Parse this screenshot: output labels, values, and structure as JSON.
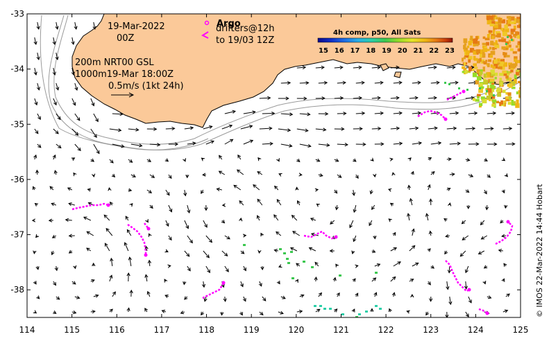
{
  "map": {
    "lon_range": [
      114,
      125
    ],
    "lat_range": [
      -38.5,
      -33
    ],
    "x_ticks": [
      114,
      115,
      116,
      117,
      118,
      119,
      120,
      121,
      122,
      123,
      124,
      125
    ],
    "y_ticks": [
      -33,
      -34,
      -35,
      -36,
      -37,
      -38
    ]
  },
  "header": {
    "date": "19-Mar-2022",
    "hour": "00Z",
    "argo_label": "Argo",
    "drifters_line1": "drifters@12h",
    "drifters_line2": "to 19/03 12Z"
  },
  "left_info": {
    "depth_line": "200m  NRT00 GSL",
    "depth2_line": "1000m19-Mar 18:00Z",
    "scale_label": "0.5m/s (1kt 24h)"
  },
  "colorbar": {
    "title": "4h comp, p50, All Sats",
    "ticks": [
      "15",
      "16",
      "17",
      "18",
      "19",
      "20",
      "21",
      "22",
      "23"
    ],
    "colors": [
      "#0a0a8c",
      "#1030c8",
      "#1e6ee6",
      "#28b0e6",
      "#2ccfa8",
      "#3cc850",
      "#96dc28",
      "#e6e628",
      "#f0b414",
      "#e67814",
      "#c83c0a",
      "#8c140a"
    ]
  },
  "credit": "© IMOS 22-Mar-2022 14:44 Hobart",
  "colors": {
    "land": "#fbc999",
    "drifter": "#ff00ff"
  }
}
